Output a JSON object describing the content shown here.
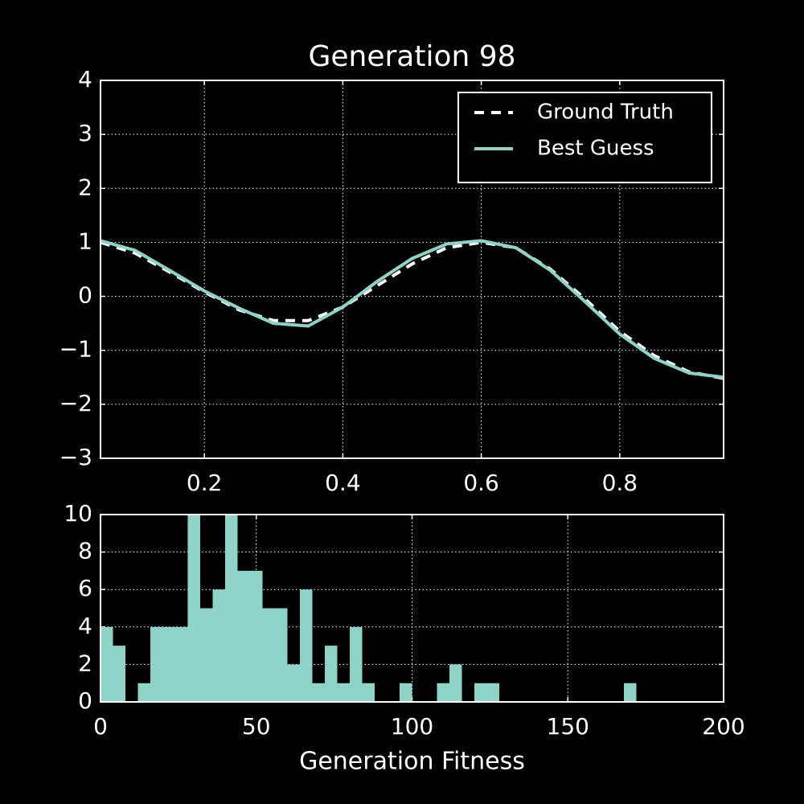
{
  "chart_data": [
    {
      "type": "line",
      "title": "Generation 98",
      "x": [
        0.05,
        0.1,
        0.15,
        0.2,
        0.25,
        0.3,
        0.35,
        0.4,
        0.45,
        0.5,
        0.55,
        0.6,
        0.65,
        0.7,
        0.75,
        0.8,
        0.85,
        0.9,
        0.95
      ],
      "series": [
        {
          "name": "Ground Truth",
          "color": "#ffffff",
          "linestyle": "dashed",
          "values": [
            1.0,
            0.8,
            0.45,
            0.08,
            -0.25,
            -0.45,
            -0.45,
            -0.2,
            0.2,
            0.6,
            0.9,
            1.0,
            0.9,
            0.5,
            -0.05,
            -0.65,
            -1.1,
            -1.4,
            -1.52
          ]
        },
        {
          "name": "Best Guess",
          "color": "#8dd3c7",
          "linestyle": "solid",
          "values": [
            1.03,
            0.85,
            0.48,
            0.1,
            -0.22,
            -0.5,
            -0.55,
            -0.2,
            0.28,
            0.7,
            0.97,
            1.03,
            0.9,
            0.48,
            -0.1,
            -0.7,
            -1.15,
            -1.42,
            -1.5
          ]
        }
      ],
      "xlim": [
        0.05,
        0.95
      ],
      "xticks": [
        0.2,
        0.4,
        0.6,
        0.8
      ],
      "ylim": [
        -3,
        4
      ],
      "yticks": [
        {
          "value": -3,
          "label": "−3"
        },
        {
          "value": -2,
          "label": "−2"
        },
        {
          "value": -1,
          "label": "−1"
        },
        0,
        1,
        2,
        3,
        4
      ],
      "grid": true,
      "legend": "upper right"
    },
    {
      "type": "histogram",
      "xlabel": "Generation Fitness",
      "color": "#8dd3c7",
      "bins": [
        0,
        4,
        8,
        12,
        16,
        20,
        24,
        28,
        32,
        36,
        40,
        44,
        48,
        52,
        56,
        60,
        64,
        68,
        72,
        76,
        80,
        84,
        88,
        92,
        96,
        100,
        104,
        108,
        112,
        116,
        120,
        124,
        128,
        132,
        136,
        140,
        144,
        148,
        152,
        156,
        160,
        164,
        168,
        172,
        176,
        180,
        184,
        188,
        192,
        196,
        200
      ],
      "values": [
        4,
        3,
        0,
        1,
        4,
        4,
        4,
        10,
        5,
        6,
        10,
        7,
        7,
        5,
        5,
        2,
        6,
        1,
        3,
        1,
        4,
        1,
        0,
        0,
        1,
        0,
        0,
        1,
        2,
        0,
        1,
        1,
        0,
        0,
        0,
        0,
        0,
        0,
        0,
        0,
        0,
        0,
        1,
        0,
        0,
        0,
        0,
        0,
        0,
        0
      ],
      "xlim": [
        0,
        200
      ],
      "xticks": [
        0,
        50,
        100,
        150,
        200
      ],
      "ylim": [
        0,
        10
      ],
      "yticks": [
        0,
        2,
        4,
        6,
        8,
        10
      ],
      "grid": true
    }
  ]
}
